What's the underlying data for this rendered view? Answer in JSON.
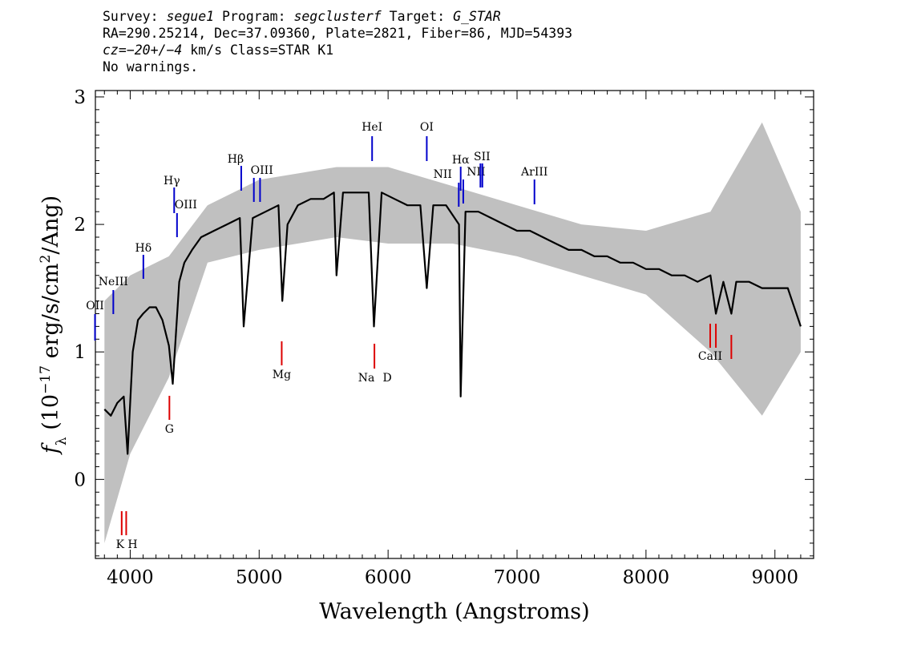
{
  "header": {
    "line1": {
      "survey_label": "Survey: ",
      "survey": "segue1",
      "program_label": " Program: ",
      "program": "segclusterf",
      "target_label": " Target: ",
      "target": "G_STAR"
    },
    "line2": "RA=290.25214, Dec=37.09360, Plate=2821, Fiber=86, MJD=54393",
    "line3": {
      "cz_label": "cz=",
      "cz": "−20+/−4",
      "rest": " km/s Class=STAR K1"
    },
    "line4": "No warnings."
  },
  "chart_data": {
    "type": "line",
    "title": "",
    "xlabel": "Wavelength (Angstroms)",
    "ylabel": {
      "f": "f",
      "sub": "λ",
      "pre": " (10",
      "exp1": "−17",
      "mid": " erg/s/cm",
      "exp2": "2",
      "post": "/Ang)"
    },
    "xlim": [
      3730,
      9300
    ],
    "ylim": [
      -0.62,
      3.05
    ],
    "xticks": [
      4000,
      5000,
      6000,
      7000,
      8000,
      9000
    ],
    "yticks": [
      0,
      1,
      2,
      3
    ],
    "grid": false,
    "series": [
      {
        "role": "flux",
        "color": "#000000",
        "x": [
          3800,
          3850,
          3900,
          3950,
          3980,
          4020,
          4060,
          4100,
          4150,
          4200,
          4250,
          4300,
          4330,
          4380,
          4420,
          4480,
          4550,
          4650,
          4750,
          4850,
          4880,
          4950,
          5050,
          5150,
          5180,
          5220,
          5300,
          5400,
          5500,
          5580,
          5600,
          5650,
          5750,
          5850,
          5890,
          5950,
          6050,
          6150,
          6250,
          6300,
          6350,
          6450,
          6550,
          6563,
          6600,
          6700,
          6800,
          6900,
          7000,
          7100,
          7200,
          7300,
          7400,
          7500,
          7600,
          7700,
          7800,
          7900,
          8000,
          8100,
          8200,
          8300,
          8400,
          8500,
          8542,
          8600,
          8662,
          8700,
          8800,
          8900,
          9000,
          9100,
          9200
        ],
        "values": [
          0.55,
          0.5,
          0.6,
          0.65,
          0.2,
          1.0,
          1.25,
          1.3,
          1.35,
          1.35,
          1.25,
          1.05,
          0.75,
          1.55,
          1.7,
          1.8,
          1.9,
          1.95,
          2.0,
          2.05,
          1.2,
          2.05,
          2.1,
          2.15,
          1.4,
          2.0,
          2.15,
          2.2,
          2.2,
          2.25,
          1.6,
          2.25,
          2.25,
          2.25,
          1.2,
          2.25,
          2.2,
          2.15,
          2.15,
          1.5,
          2.15,
          2.15,
          2.0,
          0.65,
          2.1,
          2.1,
          2.05,
          2.0,
          1.95,
          1.95,
          1.9,
          1.85,
          1.8,
          1.8,
          1.75,
          1.75,
          1.7,
          1.7,
          1.65,
          1.65,
          1.6,
          1.6,
          1.55,
          1.6,
          1.3,
          1.55,
          1.3,
          1.55,
          1.55,
          1.5,
          1.5,
          1.5,
          1.2
        ]
      },
      {
        "role": "error-band",
        "color": "#c0c0c0",
        "x": [
          3800,
          4000,
          4300,
          4600,
          5000,
          5600,
          6000,
          6500,
          7000,
          7500,
          8000,
          8500,
          8900,
          9200
        ],
        "upper": [
          1.4,
          1.6,
          1.75,
          2.15,
          2.35,
          2.45,
          2.45,
          2.3,
          2.15,
          2.0,
          1.95,
          2.1,
          2.8,
          2.1
        ],
        "lower": [
          -0.5,
          0.2,
          0.8,
          1.7,
          1.8,
          1.9,
          1.85,
          1.85,
          1.75,
          1.6,
          1.45,
          1.0,
          0.5,
          1.0
        ]
      }
    ],
    "annotations": {
      "emission": [
        {
          "label": "OII",
          "wavelength": 3727
        },
        {
          "label": "NeIII",
          "wavelength": 3869
        },
        {
          "label": "Hδ",
          "wavelength": 4102
        },
        {
          "label": "Hγ",
          "wavelength": 4341
        },
        {
          "label": "OIII",
          "wavelength": 4363
        },
        {
          "label": "Hβ",
          "wavelength": 4861
        },
        {
          "label": "OIII",
          "wavelength": 4959
        },
        {
          "label": "OIII",
          "wavelength": 5007
        },
        {
          "label": "HeI",
          "wavelength": 5876
        },
        {
          "label": "OI",
          "wavelength": 6300
        },
        {
          "label": "NII",
          "wavelength": 6548
        },
        {
          "label": "Hα",
          "wavelength": 6563
        },
        {
          "label": "NII",
          "wavelength": 6583
        },
        {
          "label": "SII",
          "wavelength": 6716
        },
        {
          "label": "SII",
          "wavelength": 6731
        },
        {
          "label": "ArIII",
          "wavelength": 7135
        }
      ],
      "absorption": [
        {
          "label": "K",
          "wavelength": 3934
        },
        {
          "label": "H",
          "wavelength": 3969
        },
        {
          "label": "G",
          "wavelength": 4304
        },
        {
          "label": "Mg",
          "wavelength": 5175
        },
        {
          "label": "Na",
          "wavelength": 5894
        },
        {
          "label": "D",
          "wavelength": 5894
        },
        {
          "label": "CaII",
          "wavelength": 8498
        },
        {
          "label": "CaII",
          "wavelength": 8542
        },
        {
          "label": "CaII",
          "wavelength": 8662
        }
      ]
    },
    "colors": {
      "emission": "#0000cc",
      "absorption": "#dd0000",
      "error": "#c0c0c0",
      "flux": "#000000"
    }
  }
}
